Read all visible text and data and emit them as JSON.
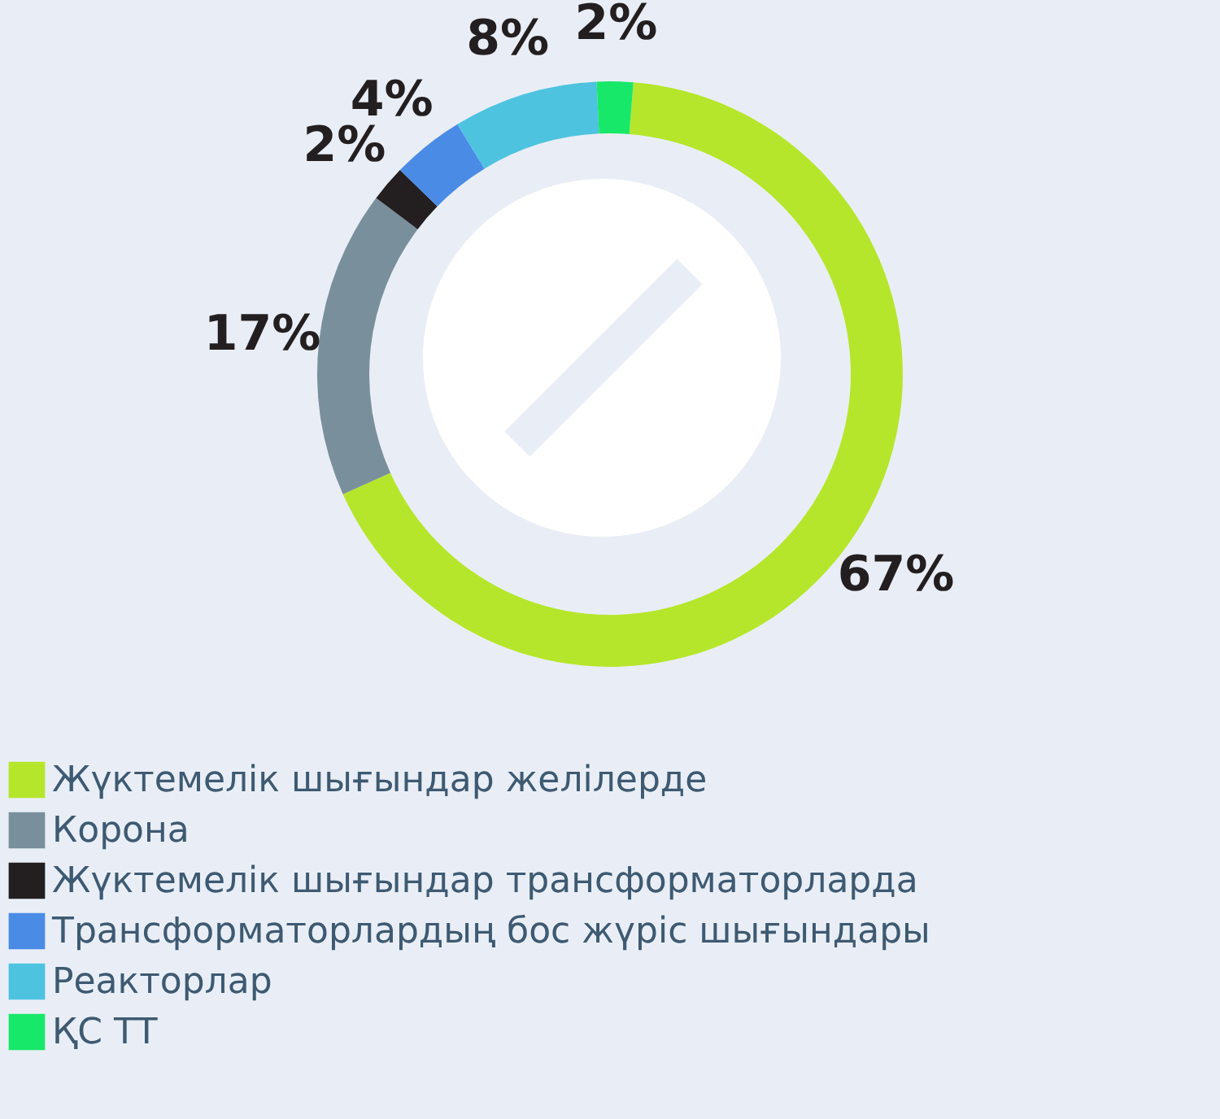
{
  "chart_data": {
    "type": "donut",
    "categories": [
      "Жүктемелік шығындар желілерде",
      "Корона",
      "Жүктемелік шығындар трансформаторларда",
      "Трансформаторлардың бос жүріс шығындары",
      "Реакторлар",
      "ҚС ТТ"
    ],
    "values": [
      67,
      17,
      2,
      4,
      8,
      2
    ],
    "value_labels": [
      "67%",
      "17%",
      "2%",
      "4%",
      "8%",
      "2%"
    ],
    "colors": [
      "#b5e62b",
      "#7a8f9c",
      "#231f20",
      "#4a8be6",
      "#4ec3e0",
      "#17e86a"
    ],
    "legend": "bottom"
  }
}
